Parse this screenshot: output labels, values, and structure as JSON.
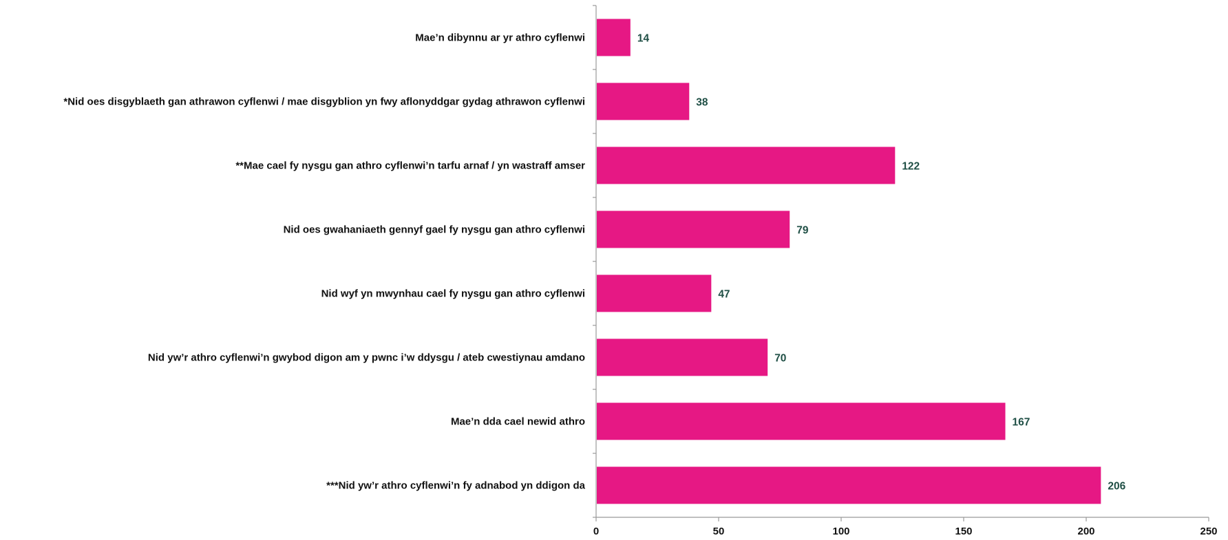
{
  "chart_data": {
    "type": "bar",
    "orientation": "horizontal",
    "title": "",
    "xlabel": "",
    "ylabel": "",
    "categories": [
      "Mae’n dibynnu ar yr athro cyflenwi",
      "*Nid oes disgyblaeth gan athrawon cyflenwi / mae disgyblion yn fwy aflonyddgar gydag athrawon cyflenwi",
      "**Mae cael fy nysgu gan athro cyflenwi’n tarfu arnaf / yn wastraff amser",
      "Nid oes gwahaniaeth gennyf gael fy nysgu gan athro cyflenwi",
      "Nid wyf yn mwynhau cael fy nysgu gan athro cyflenwi",
      "Nid yw’r athro cyflenwi’n gwybod digon am y pwnc i’w ddysgu / ateb cwestiynau amdano",
      "Mae’n dda cael newid athro",
      "***Nid yw’r athro cyflenwi’n fy adnabod yn ddigon da"
    ],
    "values": [
      14,
      38,
      122,
      79,
      47,
      70,
      167,
      206
    ],
    "xlim": [
      0,
      250
    ],
    "xticks": [
      0,
      50,
      100,
      150,
      200,
      250
    ],
    "data_labels": true,
    "grid": false,
    "legend": "none"
  },
  "colors": {
    "bar": "#e61884",
    "value_label": "#1f4f45",
    "axis": "#999999",
    "text": "#111111"
  }
}
